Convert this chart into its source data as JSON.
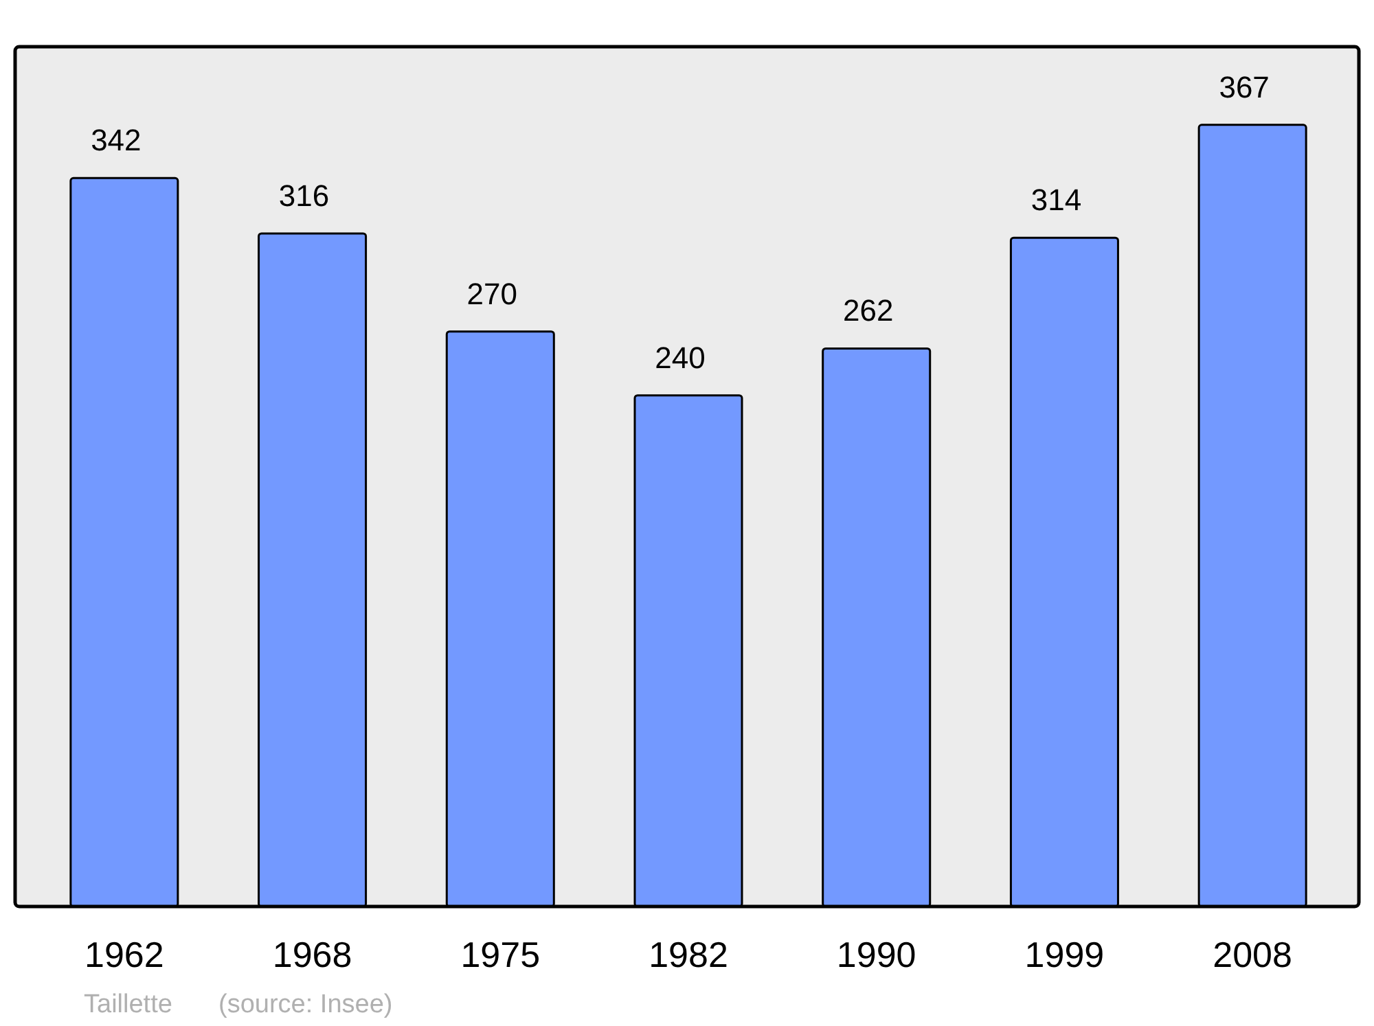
{
  "chart_data": {
    "type": "bar",
    "categories": [
      "1962",
      "1968",
      "1975",
      "1982",
      "1990",
      "1999",
      "2008"
    ],
    "values": [
      342,
      316,
      270,
      240,
      262,
      314,
      367
    ],
    "color": "#7399ff",
    "data_labels": true,
    "annotations": [
      "Taillette",
      "(source: Insee)"
    ]
  }
}
